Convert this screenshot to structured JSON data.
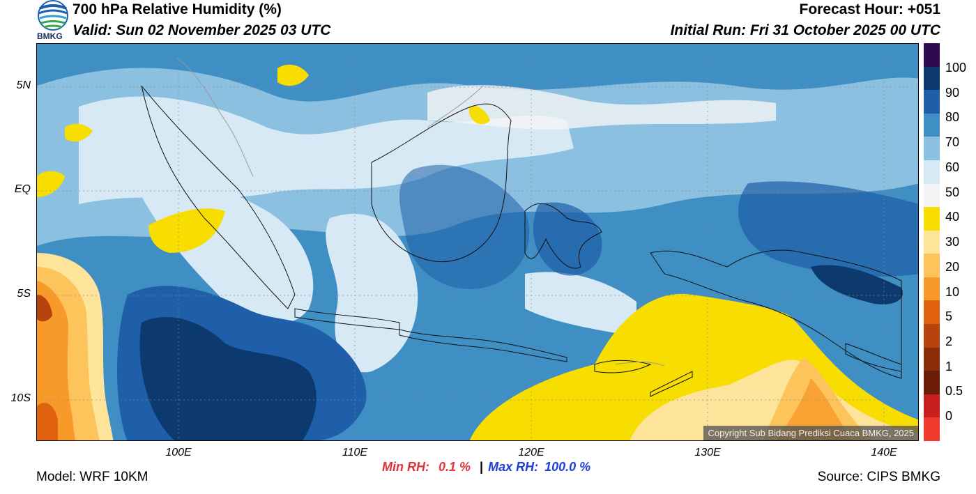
{
  "header": {
    "title": "700 hPa Relative Humidity (%)",
    "valid": "Valid: Sun 02 November 2025 03 UTC",
    "forecast_hour": "Forecast Hour: +051",
    "initial_run": "Initial Run: Fri 31 October 2025 00 UTC",
    "logo_text": "BMKG"
  },
  "map": {
    "lat_labels": [
      "5N",
      "EQ",
      "5S",
      "10S"
    ],
    "lon_labels": [
      "100E",
      "110E",
      "120E",
      "130E",
      "140E"
    ],
    "copyright": "Copyright Sub Bidang Prediksi Cuaca BMKG, 2025"
  },
  "colorbar": {
    "labels": [
      "100",
      "90",
      "80",
      "70",
      "60",
      "50",
      "40",
      "30",
      "20",
      "10",
      "5",
      "2",
      "1",
      "0.5",
      "0"
    ],
    "colors": [
      "#2f0a4f",
      "#0d3a6e",
      "#1f5ea8",
      "#3f8ec4",
      "#8bc0e0",
      "#d6e9f4",
      "#f5f5f5",
      "#f7dd00",
      "#fde49a",
      "#fcc45a",
      "#f79a2a",
      "#e0620f",
      "#b8420c",
      "#8a2d0a",
      "#6b1d0a",
      "#c81e1e",
      "#ee3b2b"
    ]
  },
  "footer": {
    "model": "Model: WRF 10KM",
    "source": "Source: CIPS BMKG",
    "min_label": "Min RH:",
    "min_value": "0.1 %",
    "separator": "|",
    "max_label": "Max RH:",
    "max_value": "100.0 %"
  }
}
